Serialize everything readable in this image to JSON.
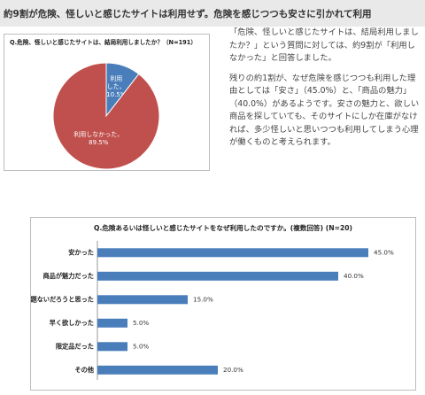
{
  "headline": "約9割が危険、怪しいと感じたサイトは利用せず。危険を感じつつも安さに引かれて利用",
  "description": {
    "p1": "「危険、怪しいと感じたサイトは、結局利用しましたか？」という質問に対しては、約9割が「利用しなかった」と回答しました。",
    "p2": "残りの約1割が、なぜ危険を感じつつも利用した理由としては「安さ」（45.0%）と、「商品の魅力」（40.0%）があるようです。安さの魅力と、欲しい商品を探していても、そのサイトにしか在庫がなければ、多少怪しいと思いつつも利用してしまう心理が働くものと考えられます。"
  },
  "colors": {
    "blue": "#4a7ebb",
    "red": "#c0504d",
    "white": "#ffffff"
  },
  "chart_data": [
    {
      "type": "pie",
      "title": "Q.危険、怪しいと感じたサイトは、結局利用しましたか？（N=191）",
      "slices": [
        {
          "label_lines": [
            "利用",
            "した、",
            "10.5%"
          ],
          "value": 10.5,
          "color": "#4a7ebb"
        },
        {
          "label_lines": [
            "利用しなかった、",
            "89.5%"
          ],
          "value": 89.5,
          "color": "#c0504d"
        }
      ]
    },
    {
      "type": "bar",
      "orientation": "horizontal",
      "title": "Q.危険あるいは怪しいと感じたサイトをなぜ利用したのですか。(複数回答) (N=20)",
      "categories": [
        "安かった",
        "商品が魅力だった",
        "問題ないだろうと思った",
        "早く欲しかった",
        "限定品だった",
        "その他"
      ],
      "values": [
        45.0,
        40.0,
        15.0,
        5.0,
        5.0,
        20.0
      ],
      "value_labels": [
        "45.0%",
        "40.0%",
        "15.0%",
        "5.0%",
        "5.0%",
        "20.0%"
      ],
      "xlim": [
        0,
        50
      ],
      "color": "#4a7ebb"
    }
  ]
}
